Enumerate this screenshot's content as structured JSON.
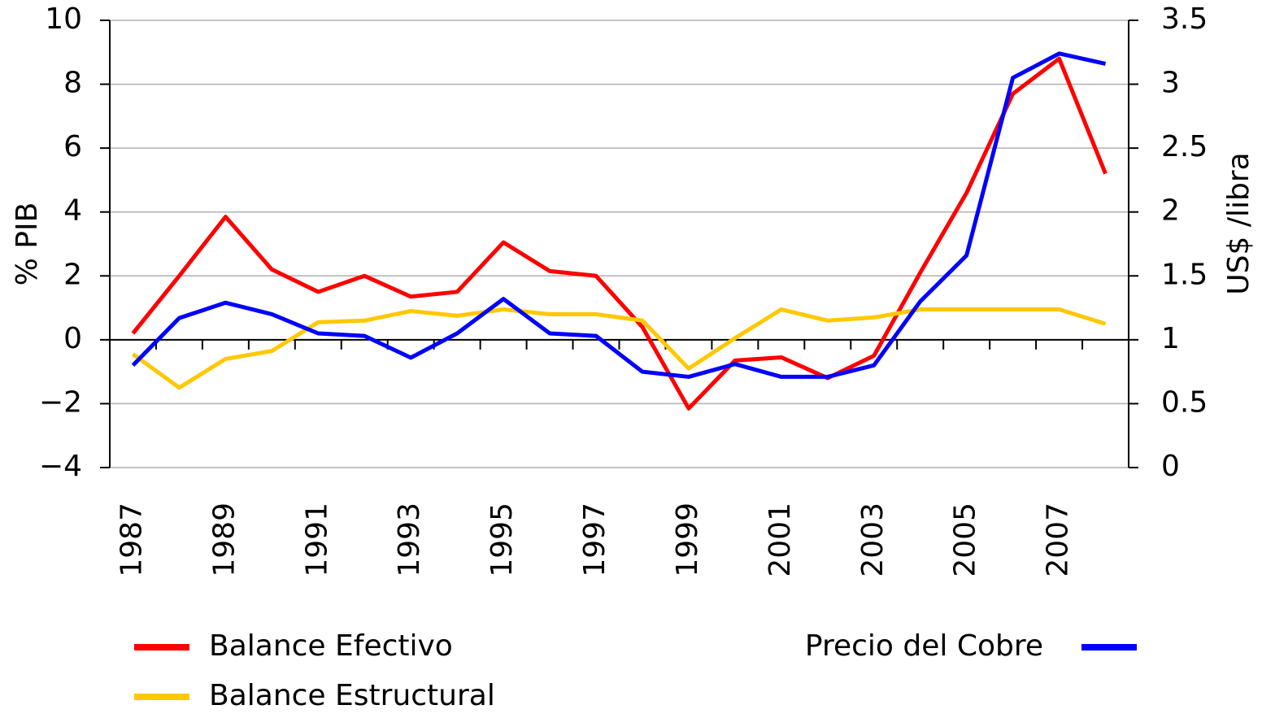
{
  "chart_data": {
    "type": "line",
    "categories": [
      "1987",
      null,
      "1989",
      null,
      "1991",
      null,
      "1993",
      null,
      "1995",
      null,
      "1997",
      null,
      "1999",
      null,
      "2001",
      null,
      "2003",
      null,
      "2005",
      null,
      "2007",
      null
    ],
    "y_label": "% PIB",
    "y2_label": "US$ /libra",
    "ylim": [
      -4,
      10
    ],
    "yticks": [
      {
        "value": -4,
        "label": "−4"
      },
      {
        "value": -2,
        "label": "−2"
      },
      0,
      2,
      4,
      6,
      8,
      10
    ],
    "y2lim": [
      0,
      3.5
    ],
    "y2ticks": [
      0,
      0.5,
      1,
      1.5,
      2,
      2.5,
      3,
      3.5
    ],
    "grid": true,
    "series": [
      {
        "name": "Balance Efectivo",
        "color": "#ff0000",
        "values": [
          0.2,
          2.0,
          3.85,
          2.2,
          1.5,
          2.0,
          1.35,
          1.5,
          3.05,
          2.15,
          2.0,
          0.4,
          -2.15,
          -0.65,
          -0.55,
          -1.2,
          -0.5,
          2.1,
          4.6,
          7.7,
          8.8,
          5.2
        ]
      },
      {
        "name": "Balance Estructural",
        "color": "#ffc800",
        "values": [
          -0.45,
          -1.5,
          -0.6,
          -0.35,
          0.55,
          0.6,
          0.9,
          0.75,
          0.95,
          0.8,
          0.8,
          0.6,
          -0.9,
          0.05,
          0.95,
          0.6,
          0.7,
          0.95,
          0.95,
          0.95,
          0.95,
          0.5
        ]
      },
      {
        "name": "Precio del Cobre",
        "color": "#0000ff",
        "axis": "y2",
        "values": [
          0.8,
          1.17,
          1.29,
          1.2,
          1.05,
          1.03,
          0.86,
          1.05,
          1.32,
          1.05,
          1.03,
          0.75,
          0.71,
          0.81,
          0.71,
          0.71,
          0.8,
          1.3,
          1.66,
          3.05,
          3.24,
          3.16
        ]
      }
    ]
  }
}
